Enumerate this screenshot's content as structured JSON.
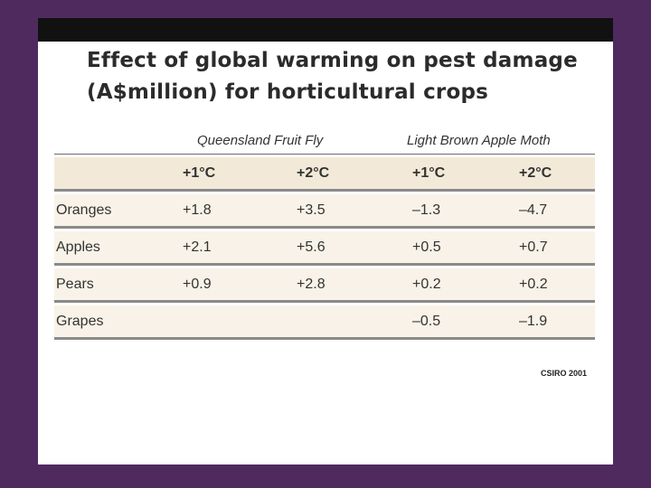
{
  "slide": {
    "title": "Effect of global warming on pest damage (A$million) for horticultural crops",
    "source": "CSIRO 2001"
  },
  "table": {
    "groups": [
      "Queensland Fruit Fly",
      "Light Brown Apple Moth"
    ],
    "columns": [
      "",
      "+1°C",
      "+2°C",
      "+1°C",
      "+2°C"
    ],
    "rows": [
      {
        "crop": "Oranges",
        "values": [
          "+1.8",
          "+3.5",
          "–1.3",
          "–4.7"
        ]
      },
      {
        "crop": "Apples",
        "values": [
          "+2.1",
          "+5.6",
          "+0.5",
          "+0.7"
        ]
      },
      {
        "crop": "Pears",
        "values": [
          "+0.9",
          "+2.8",
          "+0.2",
          "+0.2"
        ]
      },
      {
        "crop": "Grapes",
        "values": [
          "",
          "",
          "–0.5",
          "–1.9"
        ]
      }
    ]
  },
  "colors": {
    "frame": "#4f2a5f",
    "row_fill": "#f8f2e8",
    "rule": "#8a8a8a"
  }
}
